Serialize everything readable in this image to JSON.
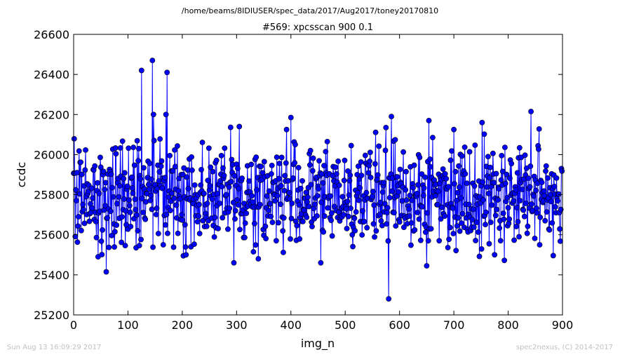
{
  "figure": {
    "suptitle": "/home/beams/8IDIUSER/spec_data/2017/Aug2017/toney20170810",
    "footer_left": "Sun Aug 13 16:09:29 2017",
    "footer_right": "spec2nexus, (C) 2014-2017"
  },
  "colors": {
    "marker": "#0000ff",
    "marker_edge": "#000000",
    "line": "#0000ff"
  },
  "chart_data": {
    "type": "line",
    "title": "#569: xpcsscan 900 0.1",
    "xlabel": "img_n",
    "ylabel": "ccdc",
    "xlim": [
      0,
      900
    ],
    "ylim": [
      25200,
      26600
    ],
    "xticks": [
      0,
      100,
      200,
      300,
      400,
      500,
      600,
      700,
      800,
      900
    ],
    "yticks": [
      25200,
      25400,
      25600,
      25800,
      26000,
      26200,
      26400,
      26600
    ],
    "grid": false,
    "n_points": 900,
    "value_band": [
      25500,
      26100
    ],
    "highlights": [
      {
        "x": 125,
        "y": 26420
      },
      {
        "x": 145,
        "y": 26470
      },
      {
        "x": 147,
        "y": 26200
      },
      {
        "x": 172,
        "y": 26410
      },
      {
        "x": 170,
        "y": 26200
      },
      {
        "x": 60,
        "y": 25415
      },
      {
        "x": 45,
        "y": 25490
      },
      {
        "x": 115,
        "y": 25535
      },
      {
        "x": 165,
        "y": 25550
      },
      {
        "x": 202,
        "y": 25495
      },
      {
        "x": 207,
        "y": 25500
      },
      {
        "x": 305,
        "y": 26140
      },
      {
        "x": 295,
        "y": 25460
      },
      {
        "x": 340,
        "y": 25480
      },
      {
        "x": 392,
        "y": 26125
      },
      {
        "x": 400,
        "y": 26185
      },
      {
        "x": 455,
        "y": 25460
      },
      {
        "x": 580,
        "y": 25280
      },
      {
        "x": 585,
        "y": 26190
      },
      {
        "x": 575,
        "y": 26135
      },
      {
        "x": 650,
        "y": 25445
      },
      {
        "x": 654,
        "y": 26170
      },
      {
        "x": 700,
        "y": 26125
      },
      {
        "x": 752,
        "y": 26160
      },
      {
        "x": 842,
        "y": 26215
      },
      {
        "x": 775,
        "y": 25500
      },
      {
        "x": 858,
        "y": 25550
      }
    ]
  }
}
